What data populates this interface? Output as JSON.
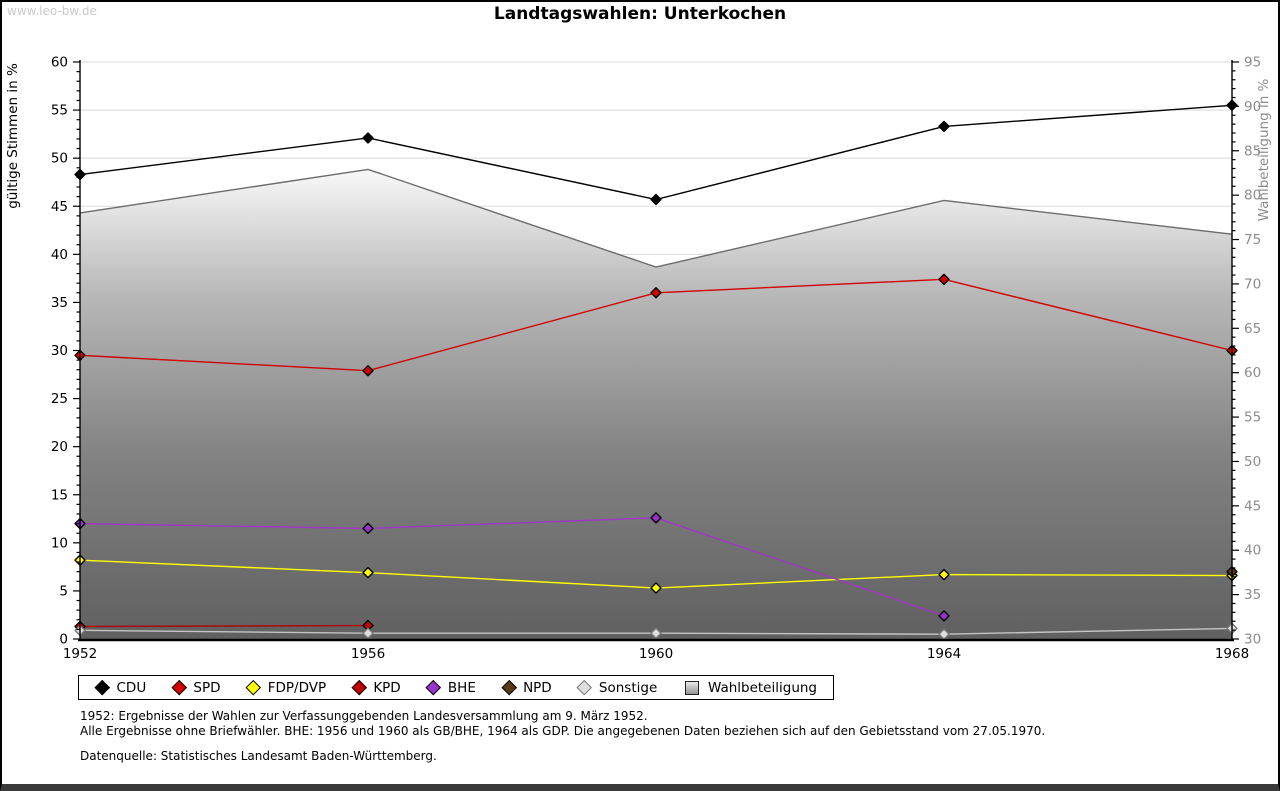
{
  "watermark": "www.leo-bw.de",
  "header": {
    "title": "Landtagswahlen: Unterkochen"
  },
  "chart_data": {
    "type": "line",
    "title": "Landtagswahlen: Unterkochen",
    "categories": [
      "1952",
      "1956",
      "1960",
      "1964",
      "1968"
    ],
    "left_axis": {
      "label": "gültige Stimmen in %",
      "min": 0,
      "max": 60,
      "tick_step": 5,
      "minor_step": 1
    },
    "right_axis": {
      "label": "Wahlbeteiligung in %",
      "min": 30,
      "max": 95,
      "tick_step": 5,
      "minor_step": 1
    },
    "grid": true,
    "legend_position": "bottom",
    "area_fill": {
      "top": "#fdfdfd",
      "mid": "#b8b8b8",
      "low": "#828282",
      "bottom": "#606060",
      "outline": "#6b6b6b"
    },
    "series": [
      {
        "name": "CDU",
        "axis": "left",
        "kind": "line",
        "color": "#000000",
        "marker_fill": "#000000",
        "marker_edge": "#000000",
        "values": [
          48.3,
          52.1,
          45.7,
          53.3,
          55.5
        ]
      },
      {
        "name": "SPD",
        "axis": "left",
        "kind": "line",
        "color": "#d40000",
        "marker_fill": "#d40000",
        "marker_edge": "#000000",
        "values": [
          29.5,
          27.9,
          36.0,
          37.4,
          30.0
        ]
      },
      {
        "name": "FDP/DVP",
        "axis": "left",
        "kind": "line",
        "color": "#ffff00",
        "marker_fill": "#ffff00",
        "marker_edge": "#000000",
        "values": [
          8.2,
          6.9,
          5.3,
          6.7,
          6.6
        ]
      },
      {
        "name": "KPD",
        "axis": "left",
        "kind": "line",
        "color": "#b30000",
        "marker_fill": "#c00000",
        "marker_edge": "#000000",
        "values": [
          1.3,
          1.4,
          null,
          null,
          null
        ]
      },
      {
        "name": "BHE",
        "axis": "left",
        "kind": "line",
        "color": "#a136c9",
        "marker_fill": "#9933cc",
        "marker_edge": "#000000",
        "values": [
          12.0,
          11.5,
          12.6,
          2.4,
          null
        ]
      },
      {
        "name": "NPD",
        "axis": "left",
        "kind": "line",
        "color": "#5a3a14",
        "marker_fill": "#5a3a14",
        "marker_edge": "#000000",
        "values": [
          null,
          null,
          null,
          null,
          7.0
        ]
      },
      {
        "name": "Sonstige",
        "axis": "left",
        "kind": "line",
        "color": "#c4c4c4",
        "marker_fill": "#dedede",
        "marker_edge": "#7a7a7a",
        "values": [
          0.9,
          0.6,
          0.6,
          0.5,
          1.1
        ]
      },
      {
        "name": "Wahlbeteiligung",
        "axis": "right",
        "kind": "area",
        "color": "#6b6b6b",
        "values": [
          78.0,
          82.9,
          71.9,
          79.4,
          75.6
        ]
      }
    ]
  },
  "footnotes": [
    "1952: Ergebnisse der Wahlen zur Verfassunggebenden Landesversammlung am 9. März 1952.",
    "Alle Ergebnisse ohne Briefwähler. BHE: 1956 und 1960 als GB/BHE, 1964 als GDP. Die angegebenen Daten beziehen sich auf den Gebietsstand vom 27.05.1970."
  ],
  "datasource": "Datenquelle: Statistisches Landesamt Baden-Württemberg."
}
